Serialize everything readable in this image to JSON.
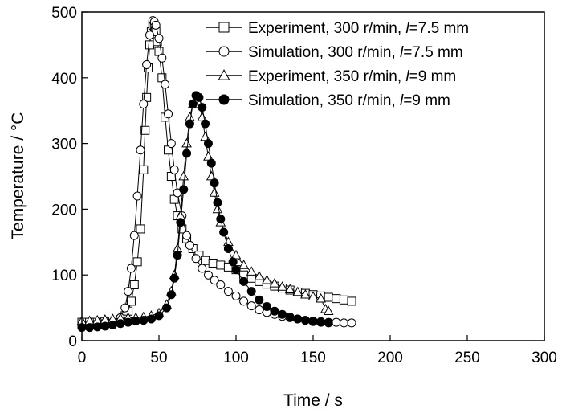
{
  "chart_data": {
    "type": "scatter",
    "xlabel": "Time / s",
    "ylabel": "Temperature / °C",
    "xlim": [
      0,
      300
    ],
    "ylim": [
      0,
      500
    ],
    "x_ticks": [
      "0",
      "50",
      "100",
      "150",
      "200",
      "250",
      "300"
    ],
    "y_ticks": [
      "0",
      "100",
      "200",
      "300",
      "400",
      "500"
    ],
    "grid": false,
    "legend_position": "top-right",
    "series": [
      {
        "name": "Experiment, 300 r/min, l=7.5 mm",
        "legend_prefix": "Experiment, 300 r/min, ",
        "legend_var": "l",
        "legend_suffix": "=7.5 mm",
        "marker": "square-open",
        "points": [
          [
            0,
            28
          ],
          [
            5,
            28
          ],
          [
            10,
            28
          ],
          [
            15,
            29
          ],
          [
            20,
            30
          ],
          [
            25,
            32
          ],
          [
            28,
            38
          ],
          [
            30,
            45
          ],
          [
            32,
            60
          ],
          [
            34,
            85
          ],
          [
            36,
            120
          ],
          [
            38,
            170
          ],
          [
            40,
            260
          ],
          [
            41,
            320
          ],
          [
            42,
            370
          ],
          [
            43,
            415
          ],
          [
            44,
            450
          ],
          [
            45,
            470
          ],
          [
            46,
            480
          ],
          [
            47,
            478
          ],
          [
            48,
            470
          ],
          [
            49,
            455
          ],
          [
            50,
            440
          ],
          [
            52,
            400
          ],
          [
            54,
            340
          ],
          [
            56,
            290
          ],
          [
            58,
            250
          ],
          [
            60,
            215
          ],
          [
            62,
            190
          ],
          [
            65,
            170
          ],
          [
            68,
            155
          ],
          [
            72,
            140
          ],
          [
            76,
            130
          ],
          [
            80,
            122
          ],
          [
            85,
            118
          ],
          [
            90,
            115
          ],
          [
            95,
            112
          ],
          [
            100,
            108
          ],
          [
            105,
            100
          ],
          [
            110,
            95
          ],
          [
            115,
            90
          ],
          [
            120,
            86
          ],
          [
            125,
            83
          ],
          [
            130,
            80
          ],
          [
            135,
            77
          ],
          [
            140,
            74
          ],
          [
            145,
            72
          ],
          [
            150,
            70
          ],
          [
            155,
            68
          ],
          [
            160,
            66
          ],
          [
            165,
            64
          ],
          [
            170,
            62
          ],
          [
            175,
            60
          ]
        ]
      },
      {
        "name": "Simulation, 300 r/min, l=7.5 mm",
        "legend_prefix": "Simulation, 300 r/min, ",
        "legend_var": "l",
        "legend_suffix": "=7.5 mm",
        "marker": "circle-open",
        "points": [
          [
            0,
            22
          ],
          [
            5,
            22
          ],
          [
            10,
            23
          ],
          [
            15,
            24
          ],
          [
            20,
            26
          ],
          [
            25,
            35
          ],
          [
            28,
            50
          ],
          [
            30,
            75
          ],
          [
            32,
            110
          ],
          [
            34,
            160
          ],
          [
            36,
            220
          ],
          [
            38,
            290
          ],
          [
            40,
            360
          ],
          [
            42,
            420
          ],
          [
            44,
            465
          ],
          [
            46,
            487
          ],
          [
            47,
            485
          ],
          [
            48,
            480
          ],
          [
            50,
            460
          ],
          [
            52,
            430
          ],
          [
            54,
            390
          ],
          [
            56,
            345
          ],
          [
            58,
            300
          ],
          [
            60,
            260
          ],
          [
            62,
            225
          ],
          [
            65,
            190
          ],
          [
            68,
            160
          ],
          [
            70,
            145
          ],
          [
            74,
            125
          ],
          [
            78,
            110
          ],
          [
            82,
            100
          ],
          [
            86,
            92
          ],
          [
            90,
            85
          ],
          [
            95,
            75
          ],
          [
            100,
            68
          ],
          [
            105,
            60
          ],
          [
            110,
            53
          ],
          [
            115,
            47
          ],
          [
            120,
            43
          ],
          [
            125,
            40
          ],
          [
            130,
            37
          ],
          [
            135,
            35
          ],
          [
            140,
            33
          ],
          [
            145,
            31
          ],
          [
            150,
            30
          ],
          [
            155,
            29
          ],
          [
            160,
            28
          ],
          [
            165,
            28
          ],
          [
            170,
            27
          ],
          [
            175,
            27
          ]
        ]
      },
      {
        "name": "Experiment, 350 r/min, l=9 mm",
        "legend_prefix": "Experiment, 350 r/min, ",
        "legend_var": "l",
        "legend_suffix": "=9 mm",
        "marker": "triangle-open",
        "points": [
          [
            0,
            30
          ],
          [
            5,
            30
          ],
          [
            10,
            31
          ],
          [
            15,
            32
          ],
          [
            20,
            33
          ],
          [
            25,
            34
          ],
          [
            30,
            35
          ],
          [
            35,
            35
          ],
          [
            40,
            36
          ],
          [
            45,
            38
          ],
          [
            50,
            42
          ],
          [
            55,
            55
          ],
          [
            58,
            75
          ],
          [
            60,
            100
          ],
          [
            62,
            140
          ],
          [
            64,
            190
          ],
          [
            66,
            250
          ],
          [
            68,
            300
          ],
          [
            70,
            340
          ],
          [
            72,
            360
          ],
          [
            74,
            365
          ],
          [
            76,
            360
          ],
          [
            78,
            340
          ],
          [
            80,
            310
          ],
          [
            82,
            280
          ],
          [
            84,
            250
          ],
          [
            86,
            225
          ],
          [
            88,
            200
          ],
          [
            90,
            180
          ],
          [
            95,
            150
          ],
          [
            100,
            130
          ],
          [
            105,
            115
          ],
          [
            110,
            105
          ],
          [
            115,
            98
          ],
          [
            120,
            92
          ],
          [
            125,
            87
          ],
          [
            130,
            82
          ],
          [
            135,
            78
          ],
          [
            140,
            74
          ],
          [
            145,
            70
          ],
          [
            150,
            67
          ],
          [
            155,
            64
          ],
          [
            158,
            48
          ],
          [
            160,
            45
          ]
        ]
      },
      {
        "name": "Simulation, 350 r/min, l=9 mm",
        "legend_prefix": "Simulation, 350 r/min, ",
        "legend_var": "l",
        "legend_suffix": "=9 mm",
        "marker": "circle-filled",
        "points": [
          [
            0,
            20
          ],
          [
            5,
            20
          ],
          [
            10,
            21
          ],
          [
            15,
            22
          ],
          [
            20,
            24
          ],
          [
            25,
            26
          ],
          [
            30,
            28
          ],
          [
            35,
            30
          ],
          [
            40,
            31
          ],
          [
            45,
            33
          ],
          [
            50,
            38
          ],
          [
            55,
            50
          ],
          [
            58,
            70
          ],
          [
            60,
            95
          ],
          [
            62,
            130
          ],
          [
            64,
            180
          ],
          [
            66,
            230
          ],
          [
            68,
            285
          ],
          [
            70,
            330
          ],
          [
            72,
            360
          ],
          [
            74,
            373
          ],
          [
            76,
            370
          ],
          [
            78,
            355
          ],
          [
            80,
            330
          ],
          [
            82,
            300
          ],
          [
            84,
            270
          ],
          [
            86,
            240
          ],
          [
            88,
            210
          ],
          [
            90,
            185
          ],
          [
            92,
            165
          ],
          [
            95,
            140
          ],
          [
            98,
            120
          ],
          [
            100,
            108
          ],
          [
            105,
            90
          ],
          [
            110,
            75
          ],
          [
            115,
            62
          ],
          [
            120,
            52
          ],
          [
            125,
            45
          ],
          [
            130,
            40
          ],
          [
            135,
            36
          ],
          [
            140,
            33
          ],
          [
            145,
            31
          ],
          [
            150,
            29
          ],
          [
            155,
            28
          ],
          [
            160,
            27
          ]
        ]
      }
    ]
  }
}
